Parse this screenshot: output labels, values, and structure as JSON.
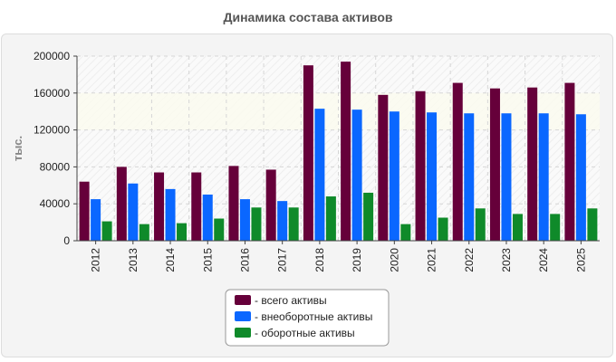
{
  "chart_data": {
    "type": "bar",
    "title": "Динамика состава активов",
    "ylabel": "тыс.",
    "xlabel": "",
    "ylim": [
      0,
      200000
    ],
    "yticks": [
      "0",
      "40000",
      "80000",
      "120000",
      "160000",
      "200000"
    ],
    "categories": [
      "2012",
      "2013",
      "2014",
      "2015",
      "2016",
      "2017",
      "2018",
      "2019",
      "2020",
      "2021",
      "2022",
      "2023",
      "2024",
      "2025"
    ],
    "series": [
      {
        "name": "- всего активы",
        "color": "#66003a",
        "values": [
          64000,
          80000,
          74000,
          74000,
          81000,
          77000,
          190000,
          194000,
          158000,
          162000,
          171000,
          165000,
          166000,
          171000
        ]
      },
      {
        "name": "- внеоборотные активы",
        "color": "#0a67ff",
        "values": [
          45000,
          62000,
          56000,
          50000,
          45000,
          43000,
          143000,
          142000,
          140000,
          139000,
          138000,
          138000,
          138000,
          137000
        ]
      },
      {
        "name": "- оборотные активы",
        "color": "#0f8a2a",
        "values": [
          21000,
          18000,
          19000,
          24000,
          36000,
          36000,
          48000,
          52000,
          18000,
          25000,
          35000,
          29000,
          29000,
          35000
        ]
      }
    ],
    "grid": true,
    "legend_position": "bottom-center"
  }
}
